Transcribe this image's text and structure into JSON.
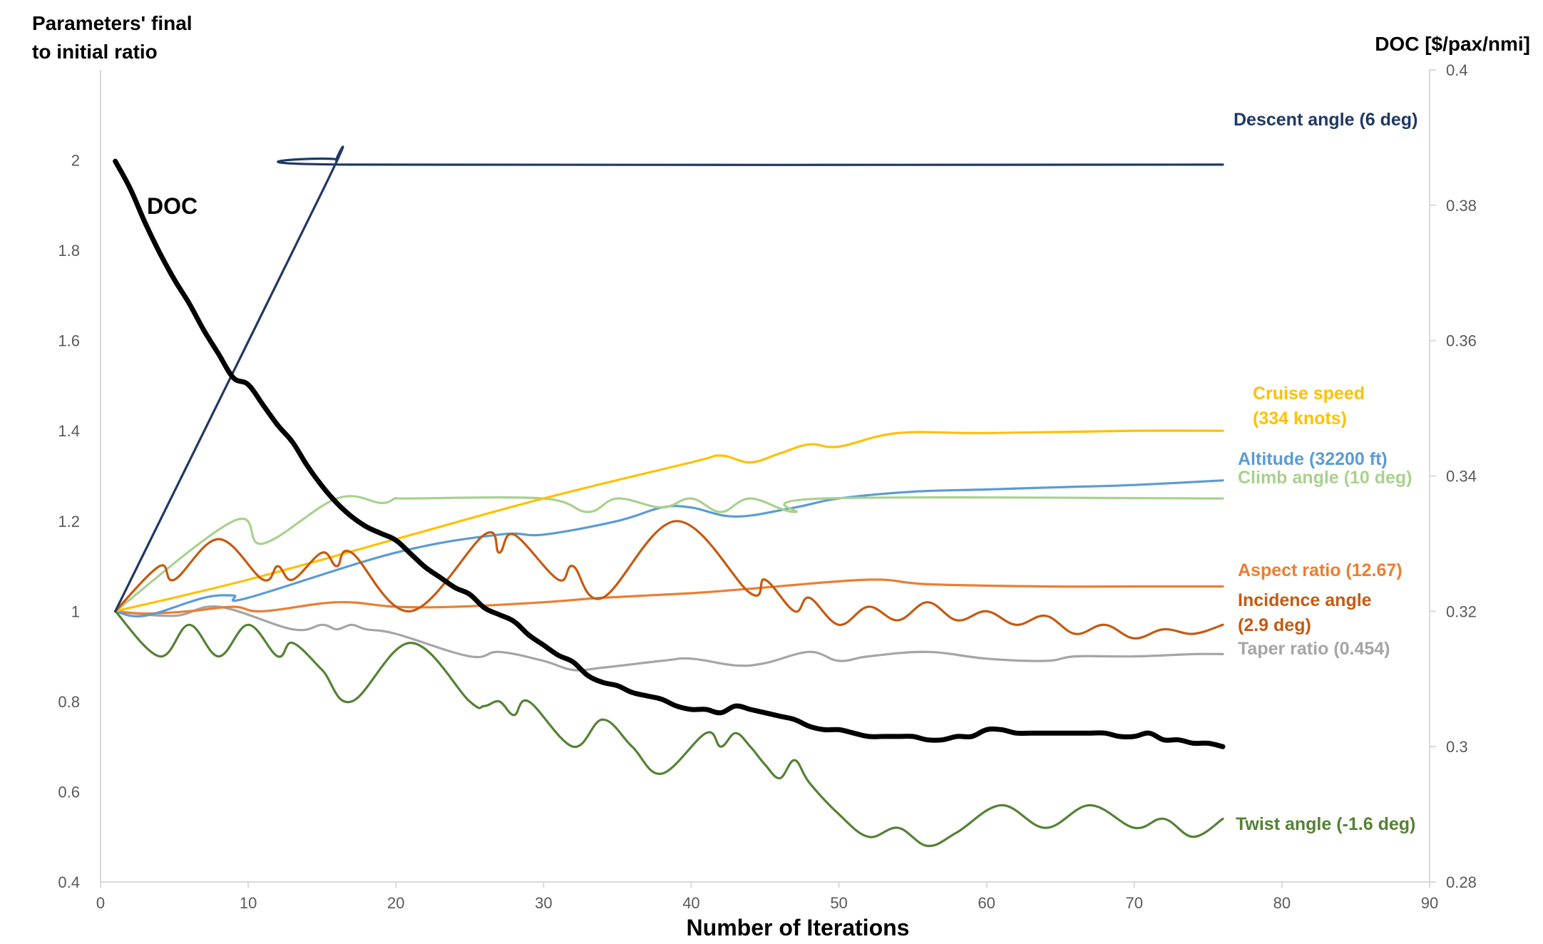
{
  "chart_data": {
    "type": "line",
    "y_left_title": [
      "Parameters' final",
      "to initial ratio"
    ],
    "y_right_title": "DOC [$/pax/nmi]",
    "x_title": "Number of Iterations",
    "xlim": [
      0,
      90
    ],
    "ylim_left": [
      0.4,
      2.2
    ],
    "ylim_right": [
      0.28,
      0.4
    ],
    "x_ticks": [
      "0",
      "10",
      "20",
      "30",
      "40",
      "50",
      "60",
      "70",
      "80",
      "90"
    ],
    "y_left_ticks": [
      "0.4",
      "0.6",
      "0.8",
      "1",
      "1.2",
      "1.4",
      "1.6",
      "1.8",
      "2"
    ],
    "y_right_ticks": [
      "0.28",
      "0.3",
      "0.32",
      "0.34",
      "0.36",
      "0.38",
      "0.4"
    ],
    "grid": false,
    "series": [
      {
        "name": "Descent angle (6 deg)",
        "color": "#1f3864",
        "axis": "left",
        "x": [
          1,
          15,
          16,
          17,
          76
        ],
        "y": [
          1,
          1.93,
          2.0,
          1.99,
          1.99
        ]
      },
      {
        "name": "Cruise speed (334 knots)",
        "color": "#ffc000",
        "axis": "left",
        "x": [
          1,
          10,
          20,
          30,
          40,
          42,
          44,
          46,
          48,
          50,
          54,
          60,
          70,
          76
        ],
        "y": [
          1,
          1.07,
          1.16,
          1.25,
          1.33,
          1.345,
          1.33,
          1.35,
          1.37,
          1.365,
          1.395,
          1.395,
          1.4,
          1.4
        ]
      },
      {
        "name": "Altitude (32200 ft)",
        "color": "#5b9bd5",
        "axis": "left",
        "x": [
          1,
          3,
          7,
          9,
          10,
          20,
          27,
          30,
          35,
          38,
          40,
          43,
          47,
          50,
          55,
          60,
          65,
          70,
          76
        ],
        "y": [
          1,
          0.99,
          1.03,
          1.035,
          1.03,
          1.13,
          1.17,
          1.17,
          1.2,
          1.23,
          1.23,
          1.21,
          1.23,
          1.25,
          1.265,
          1.27,
          1.275,
          1.28,
          1.29
        ]
      },
      {
        "name": "Climb angle (10 deg)",
        "color": "#a9d18e",
        "axis": "left",
        "x": [
          1,
          9,
          11,
          16,
          19,
          20,
          21,
          30,
          33,
          35,
          38,
          40,
          42,
          44,
          47,
          49,
          76
        ],
        "y": [
          1,
          1.2,
          1.15,
          1.25,
          1.24,
          1.25,
          1.25,
          1.25,
          1.22,
          1.25,
          1.23,
          1.25,
          1.22,
          1.25,
          1.22,
          1.25,
          1.25
        ]
      },
      {
        "name": "Aspect ratio (12.67)",
        "color": "#ed7d31",
        "axis": "left",
        "x": [
          1,
          3,
          6,
          9,
          11,
          16,
          20,
          24,
          30,
          34,
          40,
          44,
          52,
          56,
          64,
          70,
          76
        ],
        "y": [
          1,
          0.995,
          1.0,
          1.01,
          1.0,
          1.02,
          1.01,
          1.01,
          1.02,
          1.03,
          1.04,
          1.05,
          1.07,
          1.06,
          1.055,
          1.055,
          1.055
        ]
      },
      {
        "name": "Incidence angle (2.9 deg)",
        "color": "#c55a11",
        "axis": "left",
        "x": [
          1,
          4,
          5,
          8,
          11,
          12,
          13,
          15,
          16,
          17,
          21,
          26,
          27,
          28,
          31,
          32,
          34,
          39,
          44,
          45,
          47,
          48,
          50,
          52,
          54,
          56,
          58,
          60,
          62,
          64,
          66,
          68,
          70,
          72,
          74,
          76
        ],
        "y": [
          1,
          1.1,
          1.07,
          1.16,
          1.07,
          1.1,
          1.07,
          1.13,
          1.1,
          1.13,
          1.0,
          1.17,
          1.13,
          1.17,
          1.07,
          1.1,
          1.03,
          1.2,
          1.04,
          1.07,
          1.0,
          1.03,
          0.97,
          1.01,
          0.98,
          1.02,
          0.98,
          1.0,
          0.97,
          0.99,
          0.95,
          0.97,
          0.94,
          0.96,
          0.95,
          0.97
        ]
      },
      {
        "name": "Taper ratio (0.454)",
        "color": "#a5a5a5",
        "axis": "left",
        "x": [
          1,
          5,
          8,
          13,
          15,
          16,
          17,
          18,
          20,
          25,
          27,
          30,
          32,
          34,
          38,
          40,
          43,
          45,
          48,
          50,
          52,
          56,
          60,
          64,
          66,
          70,
          74,
          76
        ],
        "y": [
          1,
          0.99,
          1.01,
          0.96,
          0.97,
          0.96,
          0.97,
          0.96,
          0.95,
          0.9,
          0.91,
          0.89,
          0.87,
          0.875,
          0.89,
          0.895,
          0.88,
          0.885,
          0.91,
          0.89,
          0.9,
          0.91,
          0.895,
          0.89,
          0.9,
          0.9,
          0.905,
          0.905
        ]
      },
      {
        "name": "Twist angle (-1.6 deg)",
        "color": "#548235",
        "axis": "left",
        "x": [
          1,
          4,
          6,
          8,
          10,
          12,
          13,
          15,
          17,
          21,
          25,
          26,
          27,
          28,
          29,
          32,
          34,
          36,
          38,
          41,
          42,
          43,
          44,
          45,
          46,
          47,
          48,
          50,
          52,
          54,
          56,
          58,
          61,
          64,
          67,
          70,
          72,
          74,
          76
        ],
        "y": [
          1,
          0.9,
          0.97,
          0.9,
          0.97,
          0.9,
          0.93,
          0.87,
          0.8,
          0.93,
          0.8,
          0.79,
          0.8,
          0.77,
          0.8,
          0.7,
          0.76,
          0.7,
          0.64,
          0.73,
          0.7,
          0.73,
          0.7,
          0.66,
          0.63,
          0.67,
          0.62,
          0.55,
          0.5,
          0.52,
          0.48,
          0.51,
          0.57,
          0.52,
          0.57,
          0.52,
          0.54,
          0.5,
          0.54
        ]
      },
      {
        "name": "DOC",
        "color": "#000000",
        "axis": "right",
        "x": [
          1,
          2,
          3,
          4,
          5,
          6,
          7,
          8,
          9,
          10,
          11,
          12,
          13,
          14,
          15,
          16,
          17,
          18,
          19,
          20,
          21,
          22,
          23,
          24,
          25,
          26,
          27,
          28,
          29,
          30,
          31,
          32,
          33,
          34,
          35,
          36,
          37,
          38,
          39,
          40,
          41,
          42,
          43,
          44,
          45,
          46,
          47,
          48,
          49,
          50,
          51,
          52,
          53,
          54,
          55,
          56,
          57,
          58,
          59,
          60,
          61,
          62,
          63,
          64,
          65,
          66,
          67,
          68,
          69,
          70,
          71,
          72,
          73,
          74,
          75,
          76
        ],
        "y": [
          0.3865,
          0.3825,
          0.3775,
          0.373,
          0.369,
          0.3655,
          0.3615,
          0.358,
          0.3545,
          0.3535,
          0.3505,
          0.3475,
          0.345,
          0.3415,
          0.3385,
          0.336,
          0.334,
          0.3325,
          0.3315,
          0.3305,
          0.3285,
          0.3265,
          0.325,
          0.3235,
          0.3225,
          0.3205,
          0.3195,
          0.3185,
          0.3165,
          0.315,
          0.3135,
          0.3125,
          0.3105,
          0.3095,
          0.309,
          0.308,
          0.3075,
          0.307,
          0.306,
          0.3055,
          0.3055,
          0.305,
          0.306,
          0.3055,
          0.305,
          0.3045,
          0.304,
          0.303,
          0.3025,
          0.3025,
          0.302,
          0.3015,
          0.3015,
          0.3015,
          0.3015,
          0.301,
          0.301,
          0.3015,
          0.3015,
          0.3025,
          0.3025,
          0.302,
          0.302,
          0.302,
          0.302,
          0.302,
          0.302,
          0.302,
          0.3015,
          0.3015,
          0.302,
          0.301,
          0.301,
          0.3005,
          0.3005,
          0.3
        ]
      }
    ],
    "annotations": [
      {
        "text": "DOC",
        "color": "#000000"
      },
      {
        "lines": [
          "Descent angle (6 deg)"
        ],
        "color": "#1f3864"
      },
      {
        "lines": [
          "Cruise speed",
          "(334 knots)"
        ],
        "color": "#ffc000"
      },
      {
        "lines": [
          "Altitude (32200 ft)"
        ],
        "color": "#5b9bd5"
      },
      {
        "lines": [
          "Climb angle (10 deg)"
        ],
        "color": "#a9d18e"
      },
      {
        "lines": [
          "Aspect ratio (12.67)"
        ],
        "color": "#ed7d31"
      },
      {
        "lines": [
          "Incidence angle",
          "(2.9 deg)"
        ],
        "color": "#c55a11"
      },
      {
        "lines": [
          "Taper ratio (0.454)"
        ],
        "color": "#a5a5a5"
      },
      {
        "lines": [
          "Twist angle (-1.6 deg)"
        ],
        "color": "#548235"
      }
    ]
  }
}
